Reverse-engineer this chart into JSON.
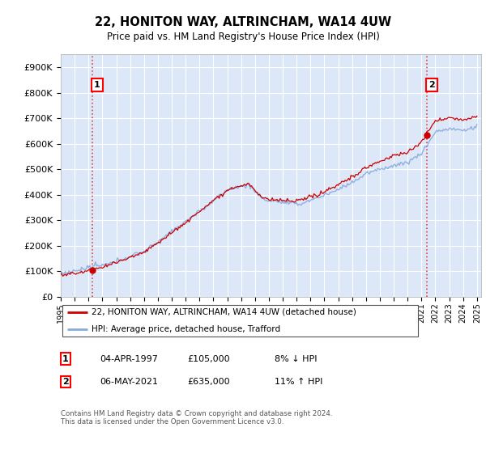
{
  "title": "22, HONITON WAY, ALTRINCHAM, WA14 4UW",
  "subtitle": "Price paid vs. HM Land Registry's House Price Index (HPI)",
  "ylim": [
    0,
    950000
  ],
  "yticks": [
    0,
    100000,
    200000,
    300000,
    400000,
    500000,
    600000,
    700000,
    800000,
    900000
  ],
  "ytick_labels": [
    "£0",
    "£100K",
    "£200K",
    "£300K",
    "£400K",
    "£500K",
    "£600K",
    "£700K",
    "£800K",
    "£900K"
  ],
  "plot_bg": "#dce8f8",
  "grid_color": "#ffffff",
  "sale1_date": 1997.25,
  "sale1_price": 105000,
  "sale2_date": 2021.37,
  "sale2_price": 635000,
  "legend_entry1": "22, HONITON WAY, ALTRINCHAM, WA14 4UW (detached house)",
  "legend_entry2": "HPI: Average price, detached house, Trafford",
  "annotation1_label": "1",
  "annotation2_label": "2",
  "table_row1": [
    "1",
    "04-APR-1997",
    "£105,000",
    "8% ↓ HPI"
  ],
  "table_row2": [
    "2",
    "06-MAY-2021",
    "£635,000",
    "11% ↑ HPI"
  ],
  "footnote": "Contains HM Land Registry data © Crown copyright and database right 2024.\nThis data is licensed under the Open Government Licence v3.0.",
  "line_red": "#cc0000",
  "line_blue": "#88aadd",
  "marker_red": "#cc0000",
  "vline_color": "#dd4444"
}
